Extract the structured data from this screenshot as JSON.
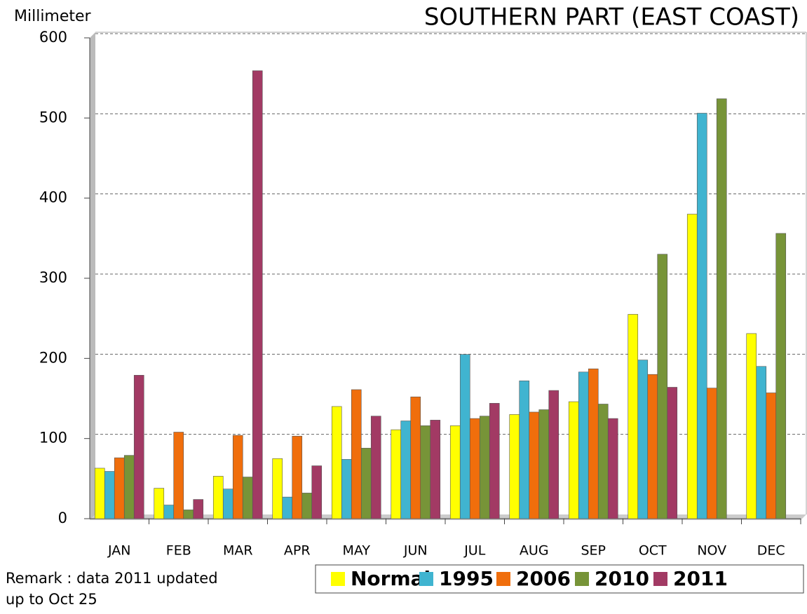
{
  "chart_data": {
    "type": "bar",
    "title": "SOUTHERN PART (EAST COAST)",
    "y_label": "Millimeter",
    "remark": [
      "Remark : data 2011 updated",
      "up to Oct 25"
    ],
    "categories": [
      "JAN",
      "FEB",
      "MAR",
      "APR",
      "MAY",
      "JUN",
      "JUL",
      "AUG",
      "SEP",
      "OCT",
      "NOV",
      "DEC"
    ],
    "series": [
      {
        "name": "Normal",
        "color": "#ffff00",
        "values": [
          63,
          38,
          53,
          75,
          140,
          111,
          116,
          130,
          146,
          255,
          380,
          231
        ]
      },
      {
        "name": "1995",
        "color": "#40b4d0",
        "values": [
          59,
          17,
          37,
          27,
          74,
          122,
          205,
          172,
          183,
          198,
          506,
          190
        ]
      },
      {
        "name": "2006",
        "color": "#f06e0c",
        "values": [
          76,
          108,
          104,
          103,
          161,
          152,
          125,
          133,
          187,
          180,
          163,
          157
        ]
      },
      {
        "name": "2010",
        "color": "#779438",
        "values": [
          79,
          11,
          52,
          32,
          88,
          116,
          128,
          136,
          143,
          330,
          524,
          356
        ]
      },
      {
        "name": "2011",
        "color": "#a23a64",
        "values": [
          179,
          24,
          559,
          66,
          128,
          123,
          144,
          160,
          125,
          164,
          null,
          null
        ]
      }
    ],
    "ylim": [
      0,
      600
    ],
    "yticks": [
      0,
      100,
      200,
      300,
      400,
      500,
      600
    ],
    "grid": true
  }
}
